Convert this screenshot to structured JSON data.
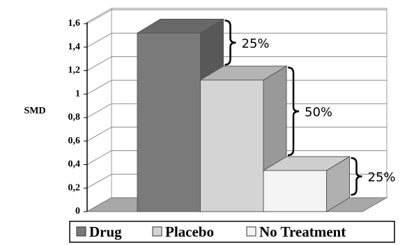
{
  "chart_data": {
    "type": "bar3d",
    "y_label": "SMD",
    "categories": [
      null
    ],
    "series": [
      {
        "name": "Drug",
        "color": "#7a7a7a",
        "values": [
          1.52
        ]
      },
      {
        "name": "Placebo",
        "color": "#d4d4d4",
        "values": [
          1.12
        ]
      },
      {
        "name": "No Treatment",
        "color": "#f4f4f4",
        "values": [
          0.35
        ]
      }
    ],
    "ylim": [
      0,
      1.6
    ],
    "yticks": [
      0,
      {
        "value": 0.2,
        "label": "0,2"
      },
      {
        "value": 0.4,
        "label": "0,4"
      },
      {
        "value": 0.6,
        "label": "0,6"
      },
      {
        "value": 0.8,
        "label": "0,8"
      },
      1,
      {
        "value": 1.2,
        "label": "1,2"
      },
      {
        "value": 1.4,
        "label": "1,4"
      },
      {
        "value": 1.6,
        "label": "1,6"
      }
    ],
    "grid": true,
    "annotations": [
      {
        "text": "25%"
      },
      {
        "text": "50%"
      },
      {
        "text": "25%"
      }
    ]
  }
}
